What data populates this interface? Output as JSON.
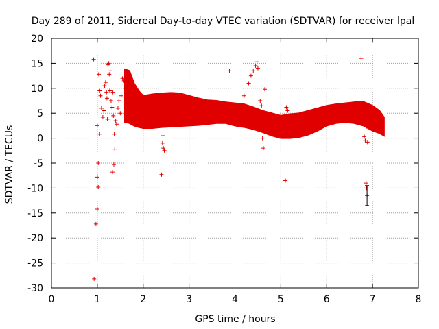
{
  "chart_data": {
    "type": "scatter",
    "title": "Day 289 of 2011, Sidereal Day-to-day VTEC variation (SDTVAR) for receiver lpal",
    "xlabel": "GPS time / hours",
    "ylabel": "SDTVAR / TECUs",
    "xlim": [
      0,
      8
    ],
    "ylim": [
      -30,
      20
    ],
    "xticks": [
      "0",
      "1",
      "2",
      "3",
      "4",
      "5",
      "6",
      "7",
      "8"
    ],
    "yticks": [
      "-30",
      "-25",
      "-20",
      "-15",
      "-10",
      "-5",
      "0",
      "5",
      "10",
      "15",
      "20"
    ],
    "grid": true,
    "marker": "+",
    "series_color": "#e00000",
    "band": [
      [
        1.6,
        3.2,
        13.8
      ],
      [
        1.7,
        3.0,
        13.5
      ],
      [
        1.8,
        2.5,
        11.0
      ],
      [
        1.9,
        2.2,
        9.5
      ],
      [
        2.0,
        2.0,
        8.5
      ],
      [
        2.2,
        2.0,
        8.8
      ],
      [
        2.4,
        2.2,
        9.0
      ],
      [
        2.6,
        2.3,
        9.1
      ],
      [
        2.8,
        2.4,
        9.0
      ],
      [
        3.0,
        2.5,
        8.5
      ],
      [
        3.2,
        2.6,
        8.0
      ],
      [
        3.4,
        2.8,
        7.6
      ],
      [
        3.6,
        3.0,
        7.5
      ],
      [
        3.8,
        3.0,
        7.2
      ],
      [
        4.0,
        2.5,
        7.0
      ],
      [
        4.2,
        2.2,
        6.8
      ],
      [
        4.4,
        1.8,
        6.2
      ],
      [
        4.6,
        1.2,
        5.5
      ],
      [
        4.8,
        0.5,
        5.0
      ],
      [
        5.0,
        0.0,
        4.5
      ],
      [
        5.2,
        0.0,
        4.8
      ],
      [
        5.4,
        0.2,
        5.0
      ],
      [
        5.6,
        0.7,
        5.5
      ],
      [
        5.8,
        1.5,
        6.0
      ],
      [
        6.0,
        2.5,
        6.5
      ],
      [
        6.2,
        3.0,
        6.8
      ],
      [
        6.4,
        3.2,
        7.0
      ],
      [
        6.6,
        3.0,
        7.2
      ],
      [
        6.8,
        2.5,
        7.3
      ],
      [
        7.0,
        1.5,
        6.5
      ],
      [
        7.15,
        1.0,
        5.5
      ],
      [
        7.25,
        0.5,
        4.2
      ]
    ],
    "points": [
      [
        0.92,
        15.8
      ],
      [
        0.93,
        -28.2
      ],
      [
        0.97,
        -17.2
      ],
      [
        1.0,
        -14.2
      ],
      [
        1.02,
        -9.8
      ],
      [
        1.0,
        -7.8
      ],
      [
        1.02,
        -5.0
      ],
      [
        1.0,
        2.5
      ],
      [
        1.05,
        0.8
      ],
      [
        1.03,
        12.8
      ],
      [
        1.05,
        9.5
      ],
      [
        1.07,
        8.5
      ],
      [
        1.09,
        6.0
      ],
      [
        1.12,
        4.2
      ],
      [
        1.14,
        5.5
      ],
      [
        1.16,
        10.5
      ],
      [
        1.18,
        11.2
      ],
      [
        1.2,
        9.2
      ],
      [
        1.21,
        8.0
      ],
      [
        1.23,
        14.7
      ],
      [
        1.25,
        15.0
      ],
      [
        1.26,
        12.8
      ],
      [
        1.28,
        13.5
      ],
      [
        1.27,
        9.5
      ],
      [
        1.3,
        7.5
      ],
      [
        1.32,
        6.2
      ],
      [
        1.33,
        -6.8
      ],
      [
        1.36,
        -5.3
      ],
      [
        1.38,
        -2.2
      ],
      [
        1.37,
        0.8
      ],
      [
        1.4,
        3.5
      ],
      [
        1.42,
        2.8
      ],
      [
        1.45,
        6.0
      ],
      [
        1.47,
        7.5
      ],
      [
        1.5,
        5.0
      ],
      [
        1.52,
        8.5
      ],
      [
        1.55,
        12.0
      ],
      [
        1.58,
        11.5
      ],
      [
        1.6,
        10.0
      ],
      [
        1.35,
        4.5
      ],
      [
        1.34,
        9.2
      ],
      [
        1.22,
        3.8
      ],
      [
        2.4,
        -7.3
      ],
      [
        2.42,
        -1.0
      ],
      [
        2.44,
        -2.0
      ],
      [
        2.46,
        -2.5
      ],
      [
        2.43,
        0.5
      ],
      [
        3.88,
        13.5
      ],
      [
        4.05,
        3.5
      ],
      [
        4.2,
        8.5
      ],
      [
        4.3,
        11.0
      ],
      [
        4.35,
        12.5
      ],
      [
        4.4,
        13.5
      ],
      [
        4.45,
        14.5
      ],
      [
        4.48,
        15.3
      ],
      [
        4.5,
        14.0
      ],
      [
        4.55,
        7.5
      ],
      [
        4.58,
        6.5
      ],
      [
        4.6,
        0.0
      ],
      [
        4.62,
        -2.0
      ],
      [
        4.65,
        9.8
      ],
      [
        5.1,
        -8.5
      ],
      [
        5.12,
        6.2
      ],
      [
        5.15,
        5.5
      ],
      [
        6.75,
        16.0
      ],
      [
        6.82,
        0.3
      ],
      [
        6.84,
        -0.5
      ],
      [
        6.86,
        -9.0
      ],
      [
        6.87,
        -10.0
      ],
      [
        6.88,
        -11.5
      ],
      [
        6.89,
        -0.8
      ],
      [
        6.9,
        2.0
      ]
    ],
    "errorbar": [
      6.88,
      -13.5,
      -9.5
    ]
  }
}
